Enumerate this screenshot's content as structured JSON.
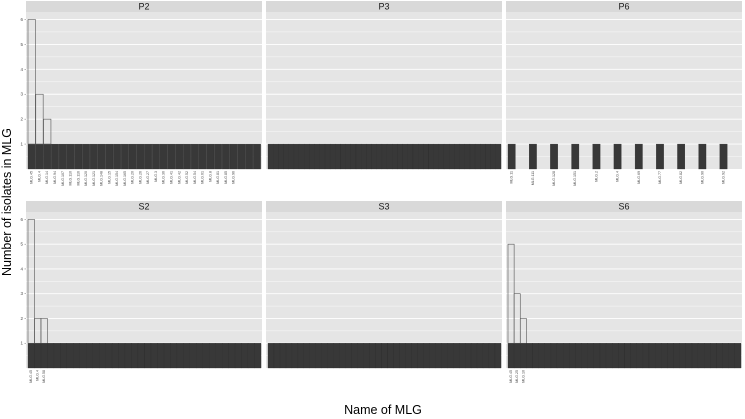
{
  "chart_data": {
    "type": "bar",
    "xlabel": "Name of MLG",
    "ylabel": "Number of isolates in MLG",
    "ylim": [
      0,
      6
    ],
    "y_ticks": [
      1,
      2,
      3,
      4,
      5,
      6
    ],
    "grid": true,
    "layout": "facet-grid 2 rows x 3 columns",
    "colors": {
      "bar_fill": "#383838",
      "bar_outline": "#555555",
      "panel_bg": "#e5e5e5",
      "strip_bg": "#d9d9d9",
      "grid": "#ffffff"
    },
    "panels": [
      {
        "panel": "P2",
        "categories": [
          "MLG.45",
          "MLG.4",
          "MLG.14",
          "MLG.94",
          "MLG.107",
          "MLG.110",
          "MLG.116",
          "MLG.120",
          "MLG.121",
          "MLG.148",
          "MLG.15",
          "MLG.154",
          "MLG.165",
          "MLG.20",
          "MLG.26",
          "MLG.27",
          "MLG.3",
          "MLG.36",
          "MLG.41",
          "MLG.42",
          "MLG.52",
          "MLG.54",
          "MLG.61",
          "MLG.8",
          "MLG.81",
          "MLG.85",
          "MLG.96",
          "",
          "",
          ""
        ],
        "values": [
          6,
          3,
          2,
          1,
          1,
          1,
          1,
          1,
          1,
          1,
          1,
          1,
          1,
          1,
          1,
          1,
          1,
          1,
          1,
          1,
          1,
          1,
          1,
          1,
          1,
          1,
          1,
          1,
          1,
          1
        ]
      },
      {
        "panel": "P3",
        "categories": [
          "",
          "",
          "",
          "",
          "",
          "",
          "",
          "",
          "",
          "",
          "",
          "",
          "",
          "",
          "",
          "",
          "",
          "",
          "",
          "",
          "",
          "",
          "",
          "",
          "",
          "",
          "",
          "",
          "",
          "",
          "",
          "",
          "",
          "",
          "",
          "",
          "",
          "",
          "",
          "",
          "",
          "",
          "",
          "",
          ""
        ],
        "values": [
          1,
          1,
          1,
          1,
          1,
          1,
          1,
          1,
          1,
          1,
          1,
          1,
          1,
          1,
          1,
          1,
          1,
          1,
          1,
          1,
          1,
          1,
          1,
          1,
          1,
          1,
          1,
          1,
          1,
          1,
          1,
          1,
          1,
          1,
          1,
          1,
          1,
          1,
          1,
          1,
          1,
          1,
          1,
          1,
          1
        ]
      },
      {
        "panel": "P6",
        "categories": [
          "MLG.11",
          "MLG.111",
          "MLG.128",
          "MLG.151",
          "MLG.2",
          "MLG.4",
          "MLG.69",
          "MLG.77",
          "MLG.82",
          "MLG.90",
          "MLG.92"
        ],
        "values": [
          1,
          1,
          1,
          1,
          1,
          1,
          1,
          1,
          1,
          1,
          1
        ]
      },
      {
        "panel": "S2",
        "categories": [
          "MLG.45",
          "MLG.4",
          "MLG.58",
          "",
          "",
          "",
          "",
          "",
          "",
          "",
          "",
          "",
          "",
          "",
          "",
          "",
          "",
          "",
          "",
          "",
          "",
          "",
          "",
          "",
          "",
          "",
          "",
          "",
          "",
          "",
          "",
          "",
          "",
          "",
          "",
          ""
        ],
        "values": [
          6,
          2,
          2,
          1,
          1,
          1,
          1,
          1,
          1,
          1,
          1,
          1,
          1,
          1,
          1,
          1,
          1,
          1,
          1,
          1,
          1,
          1,
          1,
          1,
          1,
          1,
          1,
          1,
          1,
          1,
          1,
          1,
          1,
          1,
          1,
          1
        ]
      },
      {
        "panel": "S3",
        "categories": [
          "",
          "",
          "",
          "",
          "",
          "",
          "",
          "",
          "",
          "",
          "",
          "",
          "",
          "",
          "",
          "",
          "",
          "",
          "",
          "",
          "",
          "",
          "",
          "",
          "",
          "",
          "",
          "",
          "",
          "",
          "",
          "",
          "",
          "",
          "",
          "",
          "",
          "",
          ""
        ],
        "values": [
          1,
          1,
          1,
          1,
          1,
          1,
          1,
          1,
          1,
          1,
          1,
          1,
          1,
          1,
          1,
          1,
          1,
          1,
          1,
          1,
          1,
          1,
          1,
          1,
          1,
          1,
          1,
          1,
          1,
          1,
          1,
          1,
          1,
          1,
          1,
          1,
          1,
          1,
          1
        ]
      },
      {
        "panel": "S6",
        "categories": [
          "MLG.45",
          "MLG.25",
          "MLG.10",
          "",
          "",
          "",
          "",
          "",
          "",
          "",
          "",
          "",
          "",
          "",
          "",
          "",
          "",
          "",
          "",
          "",
          "",
          "",
          "",
          "",
          "",
          "",
          "",
          "",
          "",
          "",
          "",
          "",
          "",
          "",
          "",
          "",
          "",
          ""
        ],
        "values": [
          5,
          3,
          2,
          1,
          1,
          1,
          1,
          1,
          1,
          1,
          1,
          1,
          1,
          1,
          1,
          1,
          1,
          1,
          1,
          1,
          1,
          1,
          1,
          1,
          1,
          1,
          1,
          1,
          1,
          1,
          1,
          1,
          1,
          1,
          1,
          1,
          1,
          1
        ]
      }
    ]
  }
}
